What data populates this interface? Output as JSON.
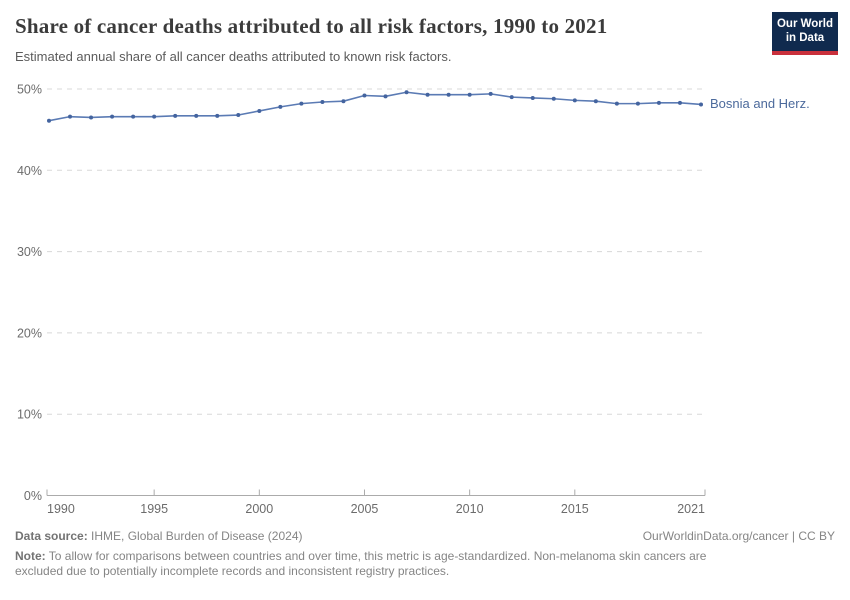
{
  "header": {
    "title": "Share of cancer deaths attributed to all risk factors, 1990 to 2021",
    "subtitle": "Estimated annual share of all cancer deaths attributed to known risk factors.",
    "logo": {
      "line1": "Our World",
      "line2": "in Data"
    }
  },
  "chart_data": {
    "type": "line",
    "title": "Share of cancer deaths attributed to all risk factors, 1990 to 2021",
    "xlabel": "",
    "ylabel": "",
    "ylim": [
      0,
      50
    ],
    "grid": "horizontal-dashed",
    "legend_position": "right-of-line-end",
    "x": [
      1990,
      1991,
      1992,
      1993,
      1994,
      1995,
      1996,
      1997,
      1998,
      1999,
      2000,
      2001,
      2002,
      2003,
      2004,
      2005,
      2006,
      2007,
      2008,
      2009,
      2010,
      2011,
      2012,
      2013,
      2014,
      2015,
      2016,
      2017,
      2018,
      2019,
      2020,
      2021
    ],
    "series": [
      {
        "name": "Bosnia and Herz.",
        "values": [
          46.1,
          46.6,
          46.5,
          46.6,
          46.6,
          46.6,
          46.7,
          46.7,
          46.7,
          46.8,
          47.3,
          47.8,
          48.2,
          48.4,
          48.5,
          49.2,
          49.1,
          49.6,
          49.3,
          49.3,
          49.3,
          49.4,
          49.0,
          48.9,
          48.8,
          48.6,
          48.5,
          48.2,
          48.2,
          48.3,
          48.3,
          48.1
        ],
        "unit": "%",
        "line_color": "#5b7bb4",
        "marker_color": "#44649f",
        "label_color": "#4c6a9c"
      }
    ],
    "ytick_values": [
      0,
      10,
      20,
      30,
      40,
      50
    ],
    "ytick_labels": [
      "0%",
      "10%",
      "20%",
      "30%",
      "40%",
      "50%"
    ],
    "xtick_values": [
      1990,
      1995,
      2000,
      2005,
      2010,
      2015,
      2021
    ]
  },
  "footer": {
    "datasource_label": "Data source:",
    "datasource_value": "IHME, Global Burden of Disease (2024)",
    "attribution": "OurWorldinData.org/cancer | CC BY",
    "note_label": "Note:",
    "note_text": "To allow for comparisons between countries and over time, this metric is age-standardized. Non-melanoma skin cancers are excluded due to potentially incomplete records and inconsistent registry practices."
  },
  "colors": {
    "axis": "#ababab",
    "grid": "#d8d8d8",
    "tick_text": "#6c6c6c",
    "footer_text": "#858585",
    "title_text": "#3b3b3b",
    "logo_bg": "#102a4e",
    "logo_accent": "#c9303c"
  }
}
